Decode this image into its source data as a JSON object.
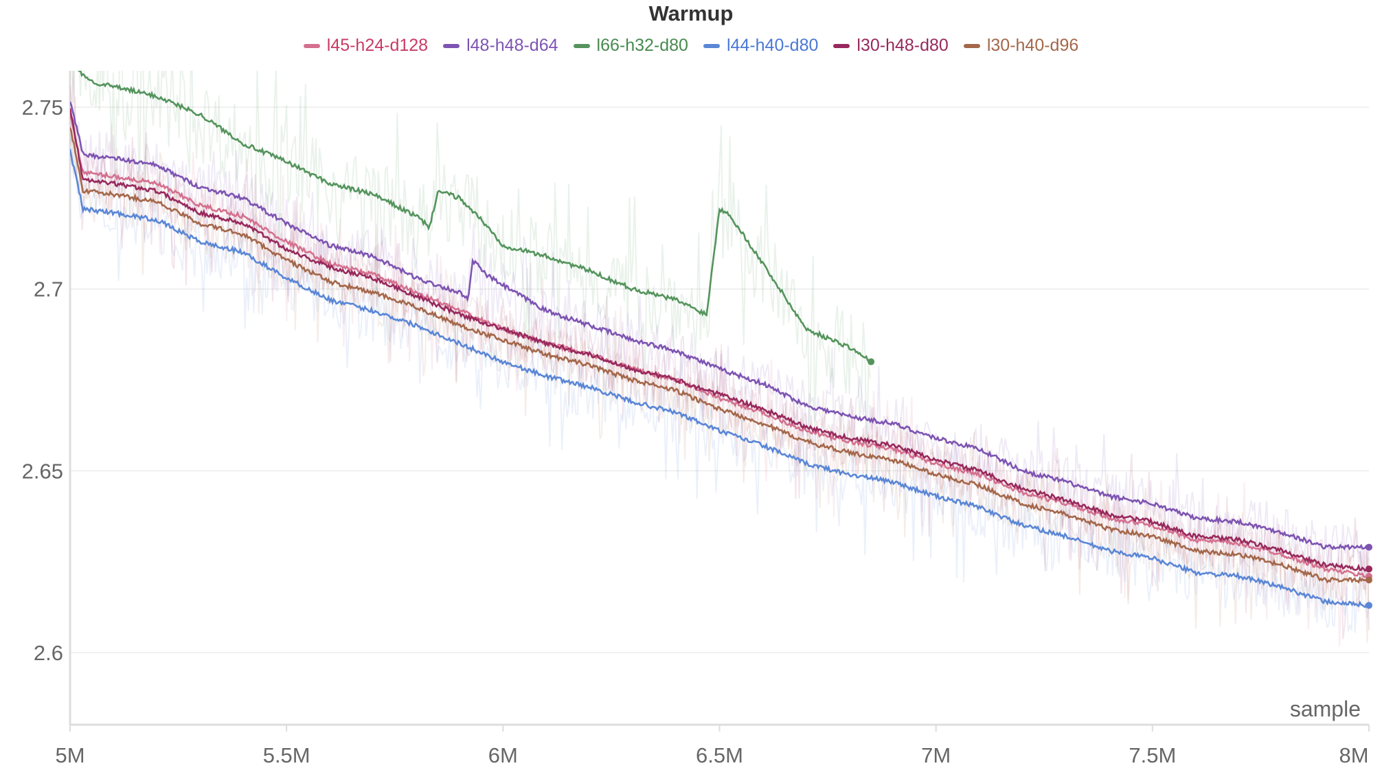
{
  "chart_data": {
    "type": "line",
    "title": "Warmup",
    "xlabel": "sample",
    "ylabel": "",
    "xlim": [
      5000000,
      8000000
    ],
    "ylim": [
      2.58,
      2.76
    ],
    "grid": true,
    "legend_position": "top-center",
    "x_ticks": [
      {
        "value": 5000000,
        "label": "5M"
      },
      {
        "value": 5500000,
        "label": "5.5M"
      },
      {
        "value": 6000000,
        "label": "6M"
      },
      {
        "value": 6500000,
        "label": "6.5M"
      },
      {
        "value": 7000000,
        "label": "7M"
      },
      {
        "value": 7500000,
        "label": "7.5M"
      },
      {
        "value": 8000000,
        "label": "8M"
      }
    ],
    "y_ticks": [
      {
        "value": 2.6,
        "label": "2.6"
      },
      {
        "value": 2.65,
        "label": "2.65"
      },
      {
        "value": 2.7,
        "label": "2.7"
      },
      {
        "value": 2.75,
        "label": "2.75"
      }
    ],
    "series": [
      {
        "name": "l45-h24-d128",
        "color": "#d4708f",
        "text_color": "#c93a66",
        "x": [
          5.0,
          5.03,
          5.1,
          5.2,
          5.3,
          5.4,
          5.5,
          5.6,
          5.7,
          5.8,
          5.9,
          6.0,
          6.1,
          6.2,
          6.3,
          6.4,
          6.5,
          6.6,
          6.7,
          6.8,
          6.9,
          7.0,
          7.1,
          7.2,
          7.3,
          7.4,
          7.5,
          7.6,
          7.7,
          7.8,
          7.9,
          8.0
        ],
        "y": [
          2.748,
          2.732,
          2.731,
          2.729,
          2.723,
          2.72,
          2.713,
          2.707,
          2.704,
          2.699,
          2.694,
          2.689,
          2.685,
          2.682,
          2.678,
          2.675,
          2.67,
          2.666,
          2.661,
          2.658,
          2.656,
          2.652,
          2.649,
          2.644,
          2.641,
          2.637,
          2.635,
          2.631,
          2.63,
          2.627,
          2.623,
          2.621
        ]
      },
      {
        "name": "l48-h48-d64",
        "color": "#7d54b2",
        "text_color": "#7d54b2",
        "x": [
          5.0,
          5.03,
          5.1,
          5.2,
          5.3,
          5.4,
          5.5,
          5.6,
          5.7,
          5.8,
          5.9,
          5.92,
          5.93,
          5.96,
          6.0,
          6.1,
          6.2,
          6.3,
          6.4,
          6.5,
          6.6,
          6.7,
          6.8,
          6.9,
          7.0,
          7.1,
          7.2,
          7.3,
          7.4,
          7.5,
          7.6,
          7.7,
          7.8,
          7.9,
          8.0
        ],
        "y": [
          2.752,
          2.737,
          2.736,
          2.734,
          2.728,
          2.725,
          2.718,
          2.712,
          2.709,
          2.703,
          2.699,
          2.697,
          2.708,
          2.704,
          2.701,
          2.694,
          2.69,
          2.686,
          2.683,
          2.678,
          2.674,
          2.668,
          2.665,
          2.663,
          2.659,
          2.656,
          2.65,
          2.647,
          2.643,
          2.641,
          2.637,
          2.636,
          2.633,
          2.629,
          2.629
        ]
      },
      {
        "name": "l66-h32-d80",
        "color": "#54945c",
        "text_color": "#478a4e",
        "x": [
          5.0,
          5.05,
          5.2,
          5.3,
          5.4,
          5.5,
          5.6,
          5.7,
          5.8,
          5.83,
          5.85,
          5.9,
          5.95,
          6.0,
          6.1,
          6.2,
          6.3,
          6.4,
          6.47,
          6.5,
          6.52,
          6.6,
          6.7,
          6.8,
          6.85
        ],
        "y": [
          2.762,
          2.757,
          2.753,
          2.748,
          2.74,
          2.735,
          2.729,
          2.726,
          2.72,
          2.717,
          2.727,
          2.725,
          2.719,
          2.712,
          2.709,
          2.705,
          2.7,
          2.697,
          2.693,
          2.722,
          2.721,
          2.707,
          2.689,
          2.684,
          2.68
        ]
      },
      {
        "name": "l44-h40-d80",
        "color": "#5a86d6",
        "text_color": "#4a78d4",
        "x": [
          5.0,
          5.03,
          5.1,
          5.2,
          5.3,
          5.4,
          5.5,
          5.6,
          5.7,
          5.8,
          5.9,
          6.0,
          6.1,
          6.2,
          6.3,
          6.4,
          6.5,
          6.6,
          6.7,
          6.8,
          6.9,
          7.0,
          7.1,
          7.2,
          7.3,
          7.4,
          7.5,
          7.6,
          7.7,
          7.8,
          7.9,
          8.0
        ],
        "y": [
          2.738,
          2.722,
          2.721,
          2.719,
          2.713,
          2.71,
          2.703,
          2.697,
          2.694,
          2.69,
          2.685,
          2.68,
          2.676,
          2.673,
          2.669,
          2.666,
          2.661,
          2.657,
          2.652,
          2.649,
          2.647,
          2.643,
          2.64,
          2.635,
          2.632,
          2.628,
          2.626,
          2.622,
          2.621,
          2.618,
          2.614,
          2.613
        ]
      },
      {
        "name": "l30-h48-d80",
        "color": "#97295c",
        "text_color": "#97295c",
        "x": [
          5.0,
          5.03,
          5.1,
          5.2,
          5.3,
          5.4,
          5.5,
          5.6,
          5.7,
          5.8,
          5.9,
          6.0,
          6.1,
          6.2,
          6.3,
          6.4,
          6.5,
          6.6,
          6.7,
          6.8,
          6.9,
          7.0,
          7.1,
          7.2,
          7.3,
          7.4,
          7.5,
          7.6,
          7.7,
          7.8,
          7.9,
          8.0
        ],
        "y": [
          2.75,
          2.73,
          2.729,
          2.727,
          2.721,
          2.718,
          2.711,
          2.706,
          2.703,
          2.698,
          2.693,
          2.689,
          2.685,
          2.682,
          2.678,
          2.675,
          2.671,
          2.667,
          2.662,
          2.659,
          2.657,
          2.653,
          2.65,
          2.645,
          2.642,
          2.638,
          2.636,
          2.632,
          2.631,
          2.628,
          2.624,
          2.623
        ]
      },
      {
        "name": "l30-h40-d96",
        "color": "#a4674a",
        "text_color": "#a4674a",
        "x": [
          5.0,
          5.03,
          5.1,
          5.2,
          5.3,
          5.4,
          5.5,
          5.6,
          5.7,
          5.8,
          5.9,
          6.0,
          6.1,
          6.2,
          6.3,
          6.4,
          6.5,
          6.6,
          6.7,
          6.8,
          6.9,
          7.0,
          7.1,
          7.2,
          7.3,
          7.4,
          7.5,
          7.6,
          7.7,
          7.8,
          7.9,
          8.0
        ],
        "y": [
          2.745,
          2.727,
          2.726,
          2.724,
          2.718,
          2.715,
          2.708,
          2.702,
          2.699,
          2.695,
          2.69,
          2.686,
          2.682,
          2.679,
          2.675,
          2.672,
          2.667,
          2.663,
          2.658,
          2.655,
          2.653,
          2.649,
          2.646,
          2.641,
          2.638,
          2.634,
          2.632,
          2.628,
          2.627,
          2.624,
          2.62,
          2.62
        ]
      }
    ]
  }
}
